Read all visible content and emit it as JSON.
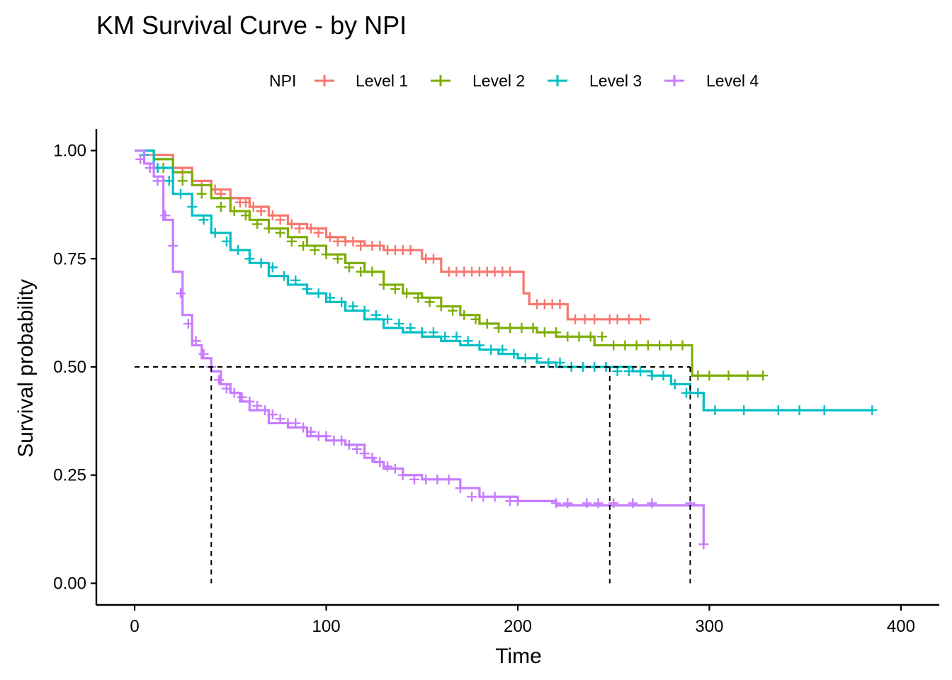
{
  "chart_data": {
    "type": "line",
    "title": "KM Survival Curve - by NPI",
    "xlabel": "Time",
    "ylabel": "Survival probability",
    "xlim": [
      -20,
      420
    ],
    "ylim": [
      -0.05,
      1.05
    ],
    "xticks": [
      0,
      100,
      200,
      300,
      400
    ],
    "xtick_labels": [
      "0",
      "100",
      "200",
      "300",
      "400"
    ],
    "yticks": [
      0,
      0.25,
      0.5,
      0.75,
      1
    ],
    "ytick_labels": [
      "0.00",
      "0.25",
      "0.50",
      "0.75",
      "1.00"
    ],
    "grid": false,
    "legend": {
      "title": "NPI",
      "position": "top"
    },
    "series": [
      {
        "name": "Level 1",
        "color": "#F8766D",
        "x": [
          0,
          10,
          20,
          30,
          40,
          50,
          60,
          70,
          80,
          90,
          100,
          110,
          120,
          130,
          150,
          160,
          180,
          200,
          203,
          206,
          226,
          230,
          269
        ],
        "y": [
          1.0,
          0.99,
          0.96,
          0.93,
          0.91,
          0.89,
          0.87,
          0.85,
          0.83,
          0.82,
          0.8,
          0.79,
          0.78,
          0.77,
          0.75,
          0.72,
          0.72,
          0.72,
          0.67,
          0.645,
          0.61,
          0.61,
          0.61
        ],
        "censor_x": [
          10,
          25,
          35,
          42,
          45,
          55,
          58,
          62,
          66,
          72,
          76,
          82,
          86,
          92,
          96,
          102,
          106,
          110,
          114,
          118,
          124,
          128,
          132,
          136,
          140,
          144,
          152,
          156,
          164,
          168,
          172,
          176,
          180,
          184,
          188,
          192,
          196,
          210,
          214,
          218,
          222,
          230,
          235,
          240,
          248,
          252,
          258,
          264
        ],
        "censor_y": [
          0.99,
          0.95,
          0.92,
          0.91,
          0.9,
          0.88,
          0.88,
          0.87,
          0.86,
          0.85,
          0.84,
          0.83,
          0.82,
          0.82,
          0.81,
          0.8,
          0.79,
          0.79,
          0.79,
          0.78,
          0.78,
          0.78,
          0.77,
          0.77,
          0.77,
          0.77,
          0.75,
          0.75,
          0.72,
          0.72,
          0.72,
          0.72,
          0.72,
          0.72,
          0.72,
          0.72,
          0.72,
          0.645,
          0.645,
          0.645,
          0.645,
          0.61,
          0.61,
          0.61,
          0.61,
          0.61,
          0.61,
          0.61
        ]
      },
      {
        "name": "Level 2",
        "color": "#7CAE00",
        "x": [
          0,
          10,
          20,
          30,
          40,
          50,
          60,
          70,
          80,
          90,
          100,
          110,
          120,
          130,
          140,
          150,
          160,
          170,
          180,
          190,
          200,
          210,
          220,
          240,
          260,
          280,
          291,
          300,
          328
        ],
        "y": [
          1.0,
          0.98,
          0.95,
          0.92,
          0.89,
          0.86,
          0.84,
          0.82,
          0.8,
          0.78,
          0.76,
          0.74,
          0.72,
          0.69,
          0.67,
          0.66,
          0.64,
          0.62,
          0.6,
          0.59,
          0.59,
          0.58,
          0.57,
          0.55,
          0.55,
          0.55,
          0.48,
          0.48,
          0.48
        ],
        "censor_x": [
          5,
          15,
          25,
          35,
          45,
          52,
          58,
          64,
          70,
          76,
          82,
          88,
          94,
          100,
          106,
          112,
          118,
          124,
          130,
          136,
          142,
          148,
          154,
          160,
          166,
          172,
          178,
          184,
          190,
          196,
          202,
          208,
          214,
          220,
          226,
          232,
          238,
          244,
          250,
          256,
          262,
          268,
          274,
          280,
          286,
          294,
          300,
          310,
          320,
          328
        ],
        "censor_y": [
          0.99,
          0.96,
          0.93,
          0.9,
          0.87,
          0.86,
          0.85,
          0.83,
          0.82,
          0.81,
          0.79,
          0.78,
          0.77,
          0.76,
          0.75,
          0.73,
          0.72,
          0.72,
          0.69,
          0.68,
          0.67,
          0.66,
          0.65,
          0.64,
          0.63,
          0.62,
          0.61,
          0.6,
          0.59,
          0.59,
          0.59,
          0.59,
          0.58,
          0.58,
          0.57,
          0.57,
          0.57,
          0.57,
          0.55,
          0.55,
          0.55,
          0.55,
          0.55,
          0.55,
          0.55,
          0.48,
          0.48,
          0.48,
          0.48,
          0.48
        ]
      },
      {
        "name": "Level 3",
        "color": "#00BFC4",
        "x": [
          0,
          10,
          20,
          30,
          40,
          50,
          60,
          70,
          80,
          90,
          100,
          110,
          120,
          130,
          140,
          150,
          160,
          170,
          180,
          190,
          200,
          210,
          220,
          240,
          260,
          270,
          280,
          290,
          297,
          300,
          385
        ],
        "y": [
          1.0,
          0.96,
          0.9,
          0.85,
          0.81,
          0.77,
          0.74,
          0.71,
          0.69,
          0.67,
          0.65,
          0.63,
          0.61,
          0.59,
          0.58,
          0.57,
          0.56,
          0.55,
          0.54,
          0.53,
          0.52,
          0.51,
          0.5,
          0.5,
          0.49,
          0.48,
          0.46,
          0.44,
          0.4,
          0.4,
          0.4
        ],
        "censor_x": [
          5,
          12,
          18,
          24,
          30,
          36,
          42,
          48,
          54,
          60,
          66,
          72,
          78,
          84,
          90,
          96,
          102,
          108,
          114,
          120,
          126,
          132,
          138,
          144,
          150,
          156,
          162,
          168,
          174,
          180,
          186,
          192,
          198,
          204,
          210,
          216,
          222,
          228,
          234,
          240,
          246,
          252,
          258,
          264,
          270,
          276,
          282,
          288,
          294,
          303,
          318,
          336,
          347,
          360,
          385
        ],
        "censor_y": [
          0.99,
          0.96,
          0.93,
          0.9,
          0.87,
          0.84,
          0.81,
          0.79,
          0.77,
          0.75,
          0.74,
          0.73,
          0.71,
          0.7,
          0.68,
          0.67,
          0.66,
          0.65,
          0.64,
          0.63,
          0.62,
          0.61,
          0.6,
          0.59,
          0.58,
          0.58,
          0.57,
          0.57,
          0.56,
          0.55,
          0.54,
          0.54,
          0.53,
          0.52,
          0.52,
          0.51,
          0.51,
          0.5,
          0.5,
          0.5,
          0.5,
          0.49,
          0.49,
          0.49,
          0.48,
          0.48,
          0.46,
          0.44,
          0.44,
          0.4,
          0.4,
          0.4,
          0.4,
          0.4,
          0.4
        ]
      },
      {
        "name": "Level 4",
        "color": "#C77CFF",
        "x": [
          0,
          5,
          10,
          15,
          20,
          25,
          30,
          35,
          40,
          45,
          50,
          55,
          60,
          70,
          80,
          90,
          100,
          110,
          120,
          125,
          130,
          140,
          150,
          160,
          170,
          180,
          190,
          200,
          220,
          240,
          260,
          280,
          295,
          297
        ],
        "y": [
          1.0,
          0.97,
          0.94,
          0.84,
          0.72,
          0.62,
          0.55,
          0.52,
          0.49,
          0.46,
          0.44,
          0.42,
          0.4,
          0.37,
          0.36,
          0.34,
          0.33,
          0.32,
          0.29,
          0.28,
          0.265,
          0.25,
          0.24,
          0.24,
          0.22,
          0.2,
          0.2,
          0.19,
          0.18,
          0.18,
          0.18,
          0.18,
          0.18,
          0.09
        ],
        "censor_x": [
          3,
          8,
          12,
          16,
          20,
          24,
          28,
          32,
          36,
          40,
          44,
          48,
          52,
          56,
          60,
          64,
          68,
          72,
          76,
          80,
          84,
          88,
          92,
          96,
          100,
          104,
          108,
          112,
          116,
          120,
          124,
          128,
          132,
          136,
          140,
          146,
          152,
          158,
          164,
          170,
          176,
          182,
          188,
          196,
          200,
          220,
          226,
          236,
          242,
          250,
          260,
          270,
          290,
          297
        ],
        "censor_y": [
          0.98,
          0.96,
          0.93,
          0.85,
          0.78,
          0.67,
          0.6,
          0.56,
          0.53,
          0.5,
          0.47,
          0.45,
          0.44,
          0.43,
          0.42,
          0.41,
          0.4,
          0.39,
          0.38,
          0.37,
          0.37,
          0.36,
          0.35,
          0.34,
          0.34,
          0.33,
          0.33,
          0.32,
          0.31,
          0.3,
          0.29,
          0.28,
          0.27,
          0.265,
          0.25,
          0.24,
          0.24,
          0.24,
          0.24,
          0.22,
          0.2,
          0.2,
          0.2,
          0.19,
          0.19,
          0.185,
          0.185,
          0.185,
          0.185,
          0.185,
          0.185,
          0.185,
          0.185,
          0.09
        ]
      }
    ],
    "median_reference": {
      "y": 0.5,
      "x_values": [
        40,
        248,
        290
      ]
    }
  }
}
